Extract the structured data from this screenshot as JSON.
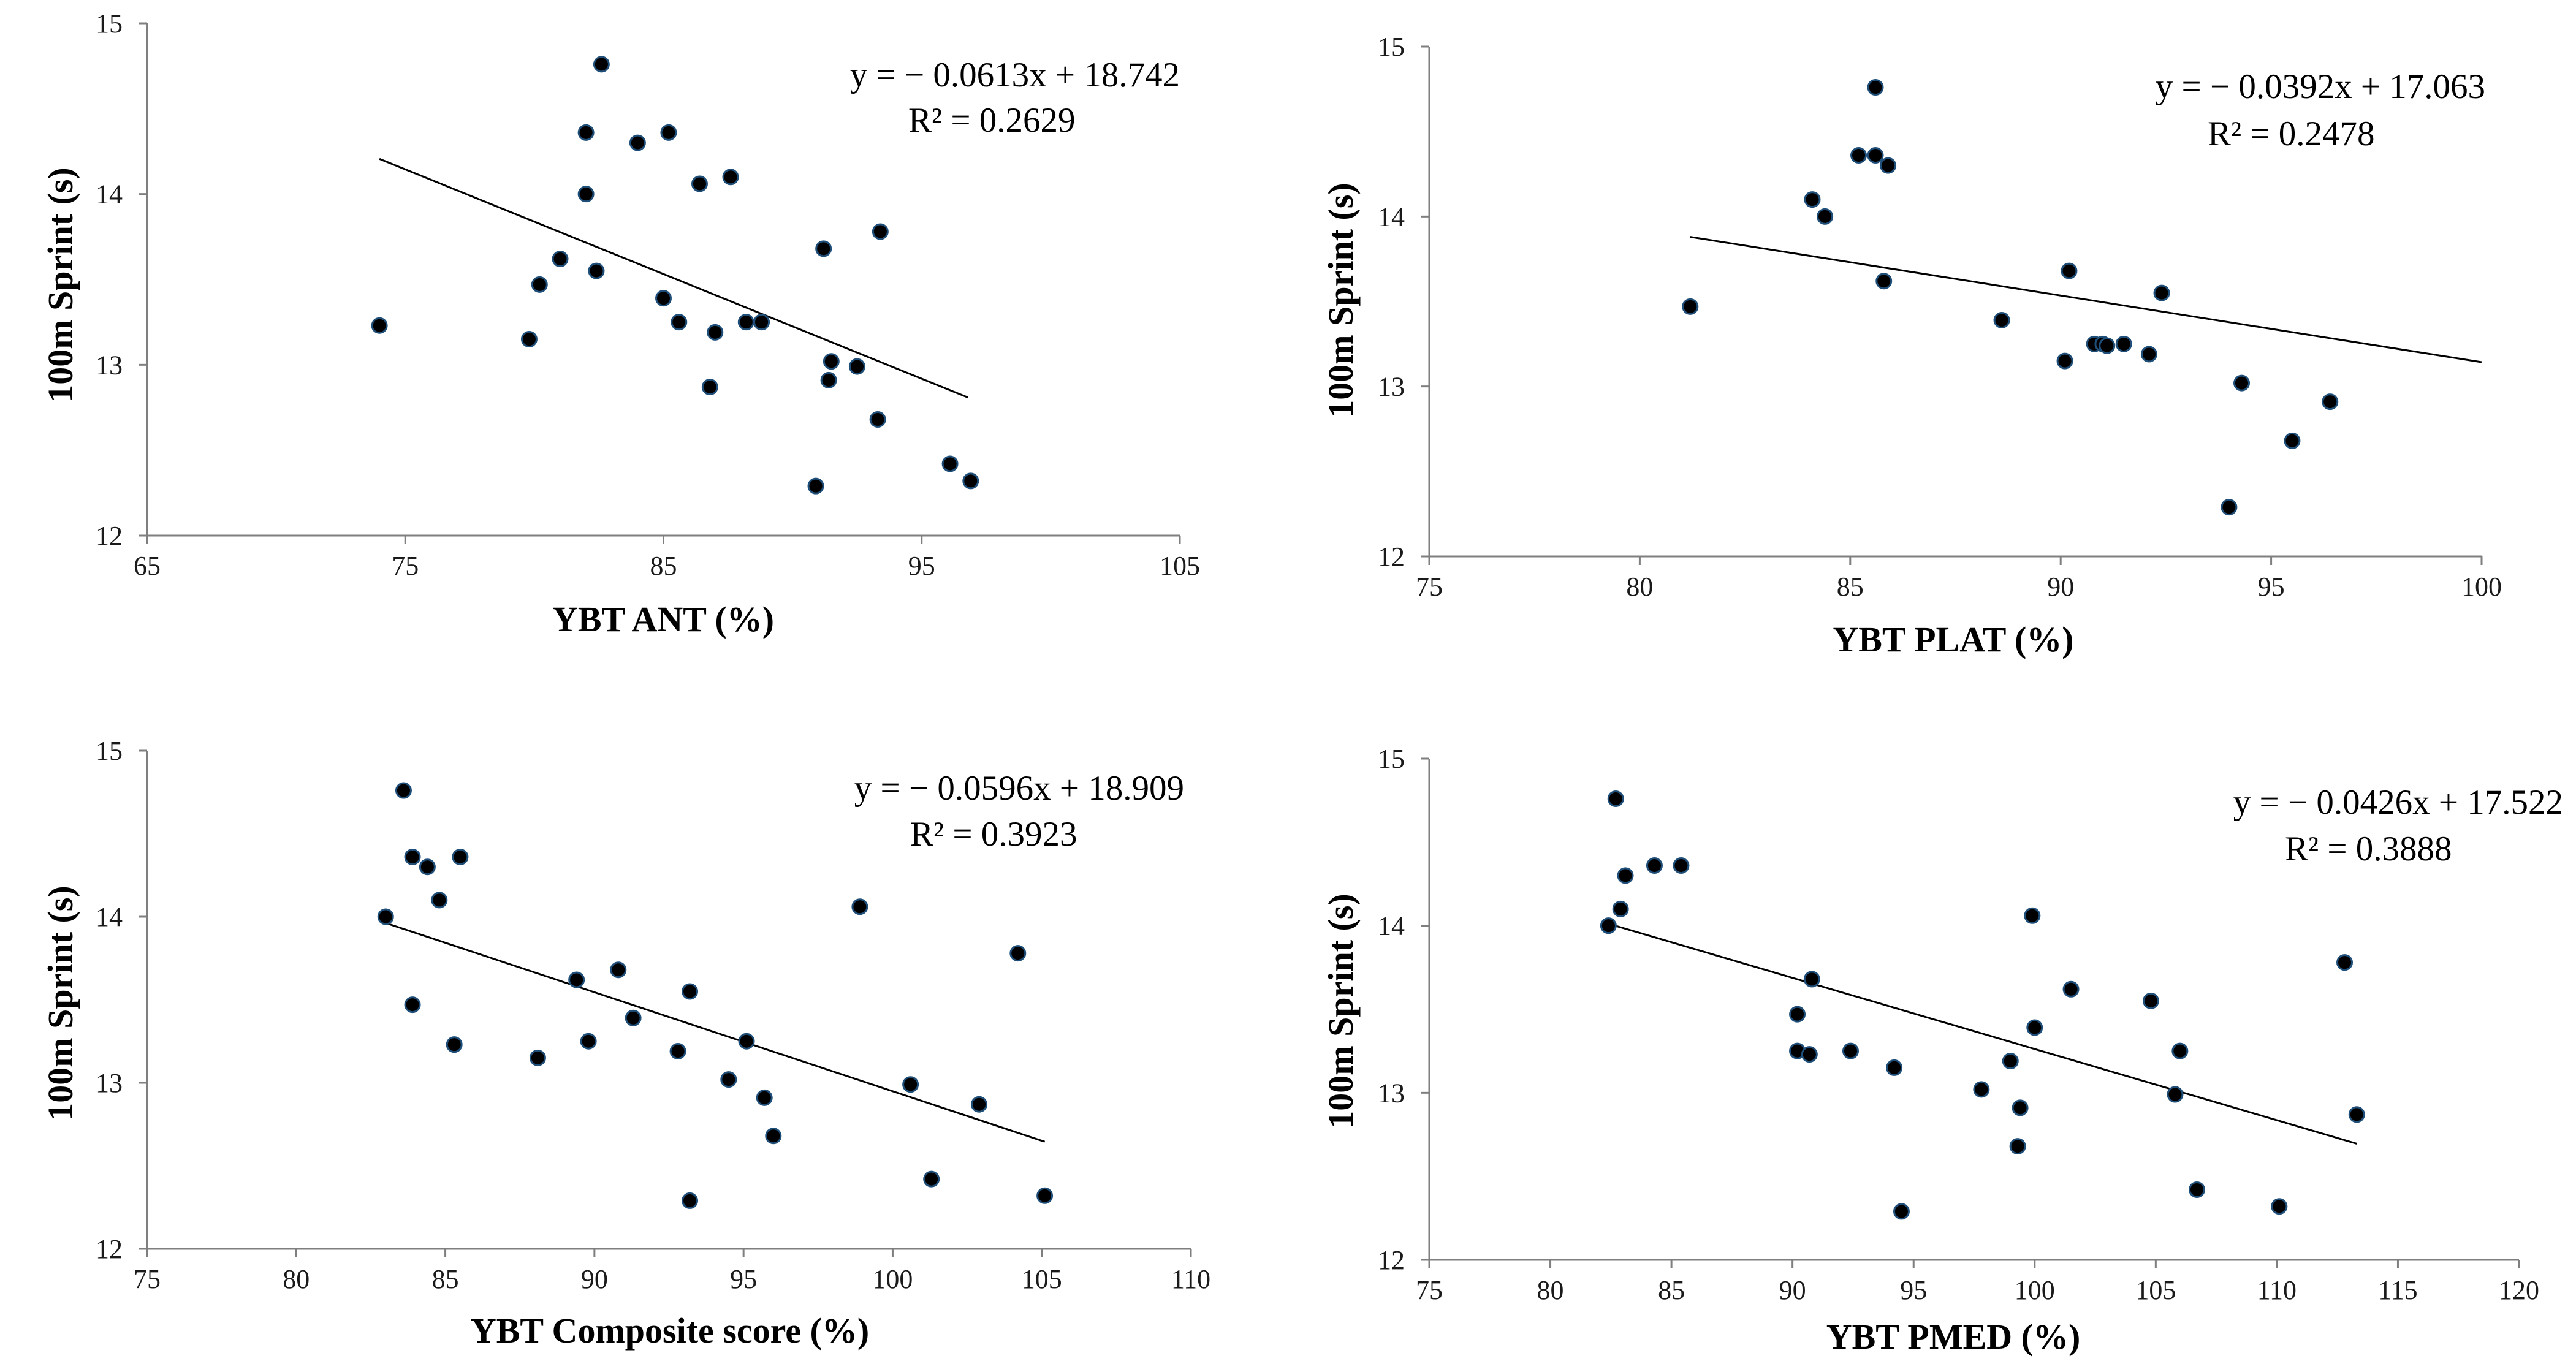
{
  "figure": {
    "background": "#ffffff",
    "point_fill": "#000000",
    "point_stroke": "#1f4e79",
    "trend_color": "#000000",
    "axis_color": "#7f7f7f"
  },
  "chart_data": [
    {
      "id": "ant",
      "type": "scatter",
      "title": "",
      "xlabel": "YBT ANT (%)",
      "ylabel": "100m Sprint (s)",
      "xlim": [
        65,
        105
      ],
      "ylim": [
        12,
        15
      ],
      "xticks": [
        65,
        75,
        85,
        95,
        105
      ],
      "yticks": [
        12,
        13,
        14,
        15
      ],
      "grid": false,
      "trendline": {
        "slope": -0.0613,
        "intercept": 18.742,
        "x_range": [
          74.0,
          96.8
        ]
      },
      "equation": "y = − 0.0613x + 18.742",
      "r_squared": "R² = 0.2629",
      "points": [
        {
          "x": 74.0,
          "y": 13.23
        },
        {
          "x": 79.8,
          "y": 13.15
        },
        {
          "x": 80.2,
          "y": 13.47
        },
        {
          "x": 81.0,
          "y": 13.62
        },
        {
          "x": 82.0,
          "y": 14.36
        },
        {
          "x": 82.0,
          "y": 14.0
        },
        {
          "x": 82.4,
          "y": 13.55
        },
        {
          "x": 82.6,
          "y": 14.76
        },
        {
          "x": 84.0,
          "y": 14.3
        },
        {
          "x": 85.0,
          "y": 13.39
        },
        {
          "x": 85.2,
          "y": 14.36
        },
        {
          "x": 85.6,
          "y": 13.25
        },
        {
          "x": 86.4,
          "y": 14.06
        },
        {
          "x": 86.8,
          "y": 12.87
        },
        {
          "x": 87.0,
          "y": 13.19
        },
        {
          "x": 87.6,
          "y": 14.1
        },
        {
          "x": 88.2,
          "y": 13.25
        },
        {
          "x": 88.8,
          "y": 13.25
        },
        {
          "x": 90.9,
          "y": 12.29
        },
        {
          "x": 91.2,
          "y": 13.68
        },
        {
          "x": 91.4,
          "y": 12.91
        },
        {
          "x": 91.5,
          "y": 13.02
        },
        {
          "x": 92.5,
          "y": 12.99
        },
        {
          "x": 93.3,
          "y": 12.68
        },
        {
          "x": 93.4,
          "y": 13.78
        },
        {
          "x": 96.1,
          "y": 12.42
        },
        {
          "x": 96.9,
          "y": 12.32
        }
      ]
    },
    {
      "id": "plat",
      "type": "scatter",
      "title": "",
      "xlabel": "YBT PLAT (%)",
      "ylabel": "100m Sprint (s)",
      "xlim": [
        75,
        100
      ],
      "ylim": [
        12,
        15
      ],
      "xticks": [
        75,
        80,
        85,
        90,
        95,
        100
      ],
      "yticks": [
        12,
        13,
        14,
        15
      ],
      "grid": false,
      "trendline": {
        "slope": -0.0392,
        "intercept": 17.063,
        "x_range": [
          81.2,
          100
        ]
      },
      "equation": "y = − 0.0392x + 17.063",
      "r_squared": "R² = 0.2478",
      "points": [
        {
          "x": 81.2,
          "y": 13.47
        },
        {
          "x": 84.1,
          "y": 14.1
        },
        {
          "x": 84.4,
          "y": 14.0
        },
        {
          "x": 85.2,
          "y": 14.36
        },
        {
          "x": 85.6,
          "y": 14.36
        },
        {
          "x": 85.6,
          "y": 14.76
        },
        {
          "x": 85.8,
          "y": 13.62
        },
        {
          "x": 85.9,
          "y": 14.3
        },
        {
          "x": 88.6,
          "y": 13.39
        },
        {
          "x": 90.1,
          "y": 13.15
        },
        {
          "x": 90.2,
          "y": 13.68
        },
        {
          "x": 90.8,
          "y": 13.25
        },
        {
          "x": 91.0,
          "y": 13.25
        },
        {
          "x": 91.1,
          "y": 13.24
        },
        {
          "x": 91.5,
          "y": 13.25
        },
        {
          "x": 92.1,
          "y": 13.19
        },
        {
          "x": 92.4,
          "y": 13.55
        },
        {
          "x": 94.0,
          "y": 12.29
        },
        {
          "x": 94.3,
          "y": 13.02
        },
        {
          "x": 95.5,
          "y": 12.68
        },
        {
          "x": 96.4,
          "y": 12.91
        }
      ]
    },
    {
      "id": "composite",
      "type": "scatter",
      "title": "",
      "xlabel": "YBT Composite score (%)",
      "ylabel": "100m Sprint (s)",
      "xlim": [
        75,
        110
      ],
      "ylim": [
        12,
        15
      ],
      "xticks": [
        75,
        80,
        85,
        90,
        95,
        100,
        105,
        110
      ],
      "yticks": [
        12,
        13,
        14,
        15
      ],
      "grid": false,
      "trendline": {
        "slope": -0.0596,
        "intercept": 18.909,
        "x_range": [
          83.0,
          105.1
        ]
      },
      "equation": "y = − 0.0596x + 18.909",
      "r_squared": "R² = 0.3923",
      "points": [
        {
          "x": 83.0,
          "y": 14.0
        },
        {
          "x": 83.6,
          "y": 14.76
        },
        {
          "x": 83.9,
          "y": 14.36
        },
        {
          "x": 83.9,
          "y": 13.47
        },
        {
          "x": 84.4,
          "y": 14.3
        },
        {
          "x": 84.8,
          "y": 14.1
        },
        {
          "x": 85.3,
          "y": 13.23
        },
        {
          "x": 85.5,
          "y": 14.36
        },
        {
          "x": 88.1,
          "y": 13.15
        },
        {
          "x": 89.4,
          "y": 13.62
        },
        {
          "x": 89.8,
          "y": 13.25
        },
        {
          "x": 90.8,
          "y": 13.68
        },
        {
          "x": 91.3,
          "y": 13.39
        },
        {
          "x": 92.8,
          "y": 13.19
        },
        {
          "x": 93.2,
          "y": 13.55
        },
        {
          "x": 93.2,
          "y": 12.29
        },
        {
          "x": 94.5,
          "y": 13.02
        },
        {
          "x": 95.1,
          "y": 13.25
        },
        {
          "x": 95.7,
          "y": 12.91
        },
        {
          "x": 96.0,
          "y": 12.68
        },
        {
          "x": 98.9,
          "y": 14.06
        },
        {
          "x": 100.6,
          "y": 12.99
        },
        {
          "x": 101.3,
          "y": 12.42
        },
        {
          "x": 102.9,
          "y": 12.87
        },
        {
          "x": 104.2,
          "y": 13.78
        },
        {
          "x": 105.1,
          "y": 12.32
        }
      ]
    },
    {
      "id": "pmed",
      "type": "scatter",
      "title": "",
      "xlabel": "YBT PMED (%)",
      "ylabel": "100m Sprint (s)",
      "xlim": [
        75,
        120
      ],
      "ylim": [
        12,
        15
      ],
      "xticks": [
        75,
        80,
        85,
        90,
        95,
        100,
        105,
        110,
        115,
        120
      ],
      "yticks": [
        12,
        13,
        14,
        15
      ],
      "grid": false,
      "trendline": {
        "slope": -0.0426,
        "intercept": 17.522,
        "x_range": [
          82.4,
          113.3
        ]
      },
      "equation": "y = − 0.0426x + 17.522",
      "r_squared": "R² = 0.3888",
      "points": [
        {
          "x": 82.4,
          "y": 14.0
        },
        {
          "x": 82.7,
          "y": 14.76
        },
        {
          "x": 82.9,
          "y": 14.1
        },
        {
          "x": 83.1,
          "y": 14.3
        },
        {
          "x": 84.3,
          "y": 14.36
        },
        {
          "x": 85.4,
          "y": 14.36
        },
        {
          "x": 90.2,
          "y": 13.47
        },
        {
          "x": 90.2,
          "y": 13.25
        },
        {
          "x": 90.7,
          "y": 13.23
        },
        {
          "x": 90.8,
          "y": 13.68
        },
        {
          "x": 92.4,
          "y": 13.25
        },
        {
          "x": 94.2,
          "y": 13.15
        },
        {
          "x": 94.5,
          "y": 12.29
        },
        {
          "x": 97.8,
          "y": 13.02
        },
        {
          "x": 99.0,
          "y": 13.19
        },
        {
          "x": 99.3,
          "y": 12.68
        },
        {
          "x": 99.4,
          "y": 12.91
        },
        {
          "x": 99.9,
          "y": 14.06
        },
        {
          "x": 100.0,
          "y": 13.39
        },
        {
          "x": 101.5,
          "y": 13.62
        },
        {
          "x": 104.8,
          "y": 13.55
        },
        {
          "x": 105.8,
          "y": 12.99
        },
        {
          "x": 106.0,
          "y": 13.25
        },
        {
          "x": 106.7,
          "y": 12.42
        },
        {
          "x": 110.1,
          "y": 12.32
        },
        {
          "x": 112.8,
          "y": 13.78
        },
        {
          "x": 113.3,
          "y": 12.87
        }
      ]
    }
  ]
}
